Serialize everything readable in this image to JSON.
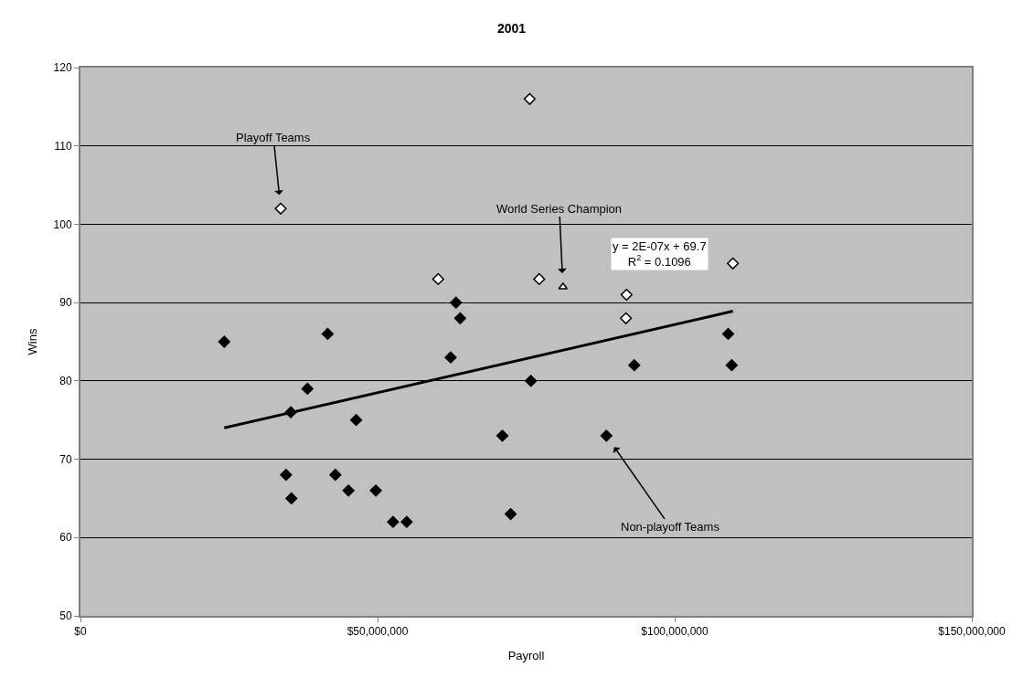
{
  "chart_data": {
    "type": "scatter",
    "title": "2001",
    "xlabel": "Payroll",
    "ylabel": "Wins",
    "xlim": [
      0,
      150000000
    ],
    "xticks": [
      {
        "value": 0,
        "label": "$0"
      },
      {
        "value": 50000000,
        "label": "$50,000,000"
      },
      {
        "value": 100000000,
        "label": "$100,000,000"
      },
      {
        "value": 150000000,
        "label": "$150,000,000"
      }
    ],
    "ylim": [
      50,
      120
    ],
    "yticks": [
      50,
      60,
      70,
      80,
      90,
      100,
      110,
      120
    ],
    "grid": "y",
    "series": [
      {
        "type": "scatter",
        "marker": "diamond",
        "color": "#000000",
        "x": [
          63200000,
          63900000,
          24200000,
          41600000,
          62300000,
          38200000,
          35400000,
          46400000,
          75800000,
          71000000,
          34600000,
          42900000,
          35500000,
          45100000,
          49700000,
          52600000,
          54900000,
          72400000,
          109000000,
          93200000,
          109600000,
          88500000
        ],
        "values": [
          90,
          88,
          85,
          86,
          83,
          79,
          76,
          75,
          80,
          73,
          68,
          68,
          65,
          66,
          66,
          62,
          62,
          63,
          86,
          82,
          82,
          73
        ]
      },
      {
        "type": "scatter",
        "marker": "diamond",
        "color": "#ffffff",
        "x": [
          75600000,
          33700000,
          60200000,
          77200000,
          109800000,
          91900000,
          91800000
        ],
        "values": [
          116,
          102,
          93,
          93,
          95,
          91,
          88
        ]
      },
      {
        "type": "scatter",
        "marker": "triangle",
        "color": "#ffffff",
        "x": [
          81200000
        ],
        "values": [
          92
        ]
      },
      {
        "type": "line",
        "marker": "none",
        "color": "#000000",
        "x": [
          24200000,
          109800000
        ],
        "values": [
          74,
          88.9
        ]
      }
    ],
    "annotations": [
      {
        "text": "Playoff Teams",
        "x": 33700000,
        "y": 102
      },
      {
        "text": "World Series Champion",
        "x": 81200000,
        "y": 92
      },
      {
        "text": "Non-playoff Teams",
        "x": 88500000,
        "y": 73
      },
      "y = 2E-07x + 69.7\nR$^{2}$ = 0.1096"
    ]
  }
}
